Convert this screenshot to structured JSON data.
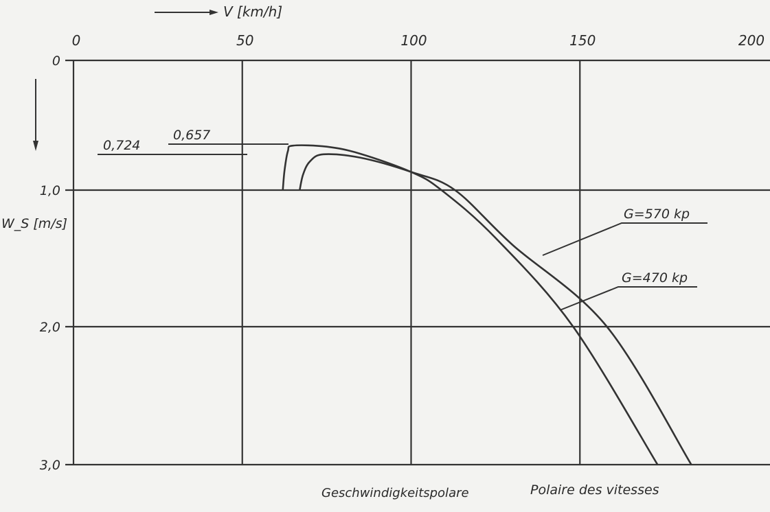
{
  "chart_data": {
    "type": "line",
    "title": "",
    "xlabel": "V [km/h]",
    "ylabel": "W_S [m/s]",
    "xlim": [
      0,
      200
    ],
    "ylim": [
      0,
      3.0
    ],
    "y_inverted": true,
    "x_axis_position": "top",
    "x_ticks": [
      "0",
      "50",
      "100",
      "150",
      "200"
    ],
    "y_ticks": [
      "0",
      "1,0",
      "2,0",
      "3,0"
    ],
    "grid": true,
    "series": [
      {
        "name": "G=570 kp",
        "x": [
          67,
          68,
          70,
          74,
          85,
          100,
          113,
          130,
          158,
          183
        ],
        "y": [
          1.0,
          0.88,
          0.78,
          0.724,
          0.75,
          0.86,
          1.0,
          1.4,
          2.0,
          3.0
        ]
      },
      {
        "name": "G=470 kp",
        "x": [
          62,
          62.5,
          63.5,
          65,
          75,
          85,
          100,
          109,
          125,
          148,
          173
        ],
        "y": [
          1.0,
          0.85,
          0.7,
          0.657,
          0.665,
          0.72,
          0.86,
          1.0,
          1.35,
          2.0,
          3.0
        ]
      }
    ],
    "annotations": [
      "0,724",
      "0,657"
    ],
    "captions": [
      "Geschwindigkeitspolare",
      "Polaire des vitesses"
    ],
    "line_color": "#333333"
  }
}
